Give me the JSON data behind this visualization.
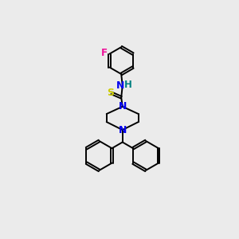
{
  "background_color": "#ebebeb",
  "atom_colors": {
    "N": "#0000ee",
    "S": "#cccc00",
    "F": "#ee1199",
    "H": "#008080",
    "C": "#000000"
  },
  "bond_color": "#000000",
  "bond_width": 1.4,
  "figsize": [
    3.0,
    3.0
  ],
  "dpi": 100,
  "ring_r": 22,
  "bottom_ring_r": 24
}
